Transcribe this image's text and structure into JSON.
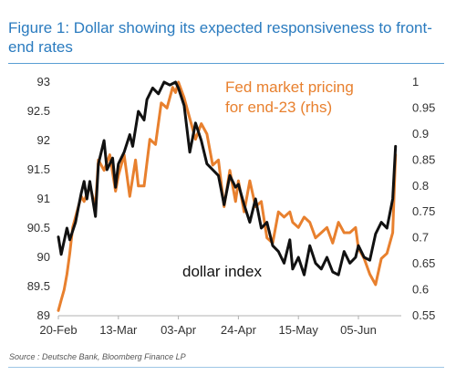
{
  "title": "Figure 1: Dollar showing its expected responsiveness to front-end rates",
  "source": "Source : Deutsche Bank, Bloomberg Finance LP",
  "colors": {
    "dollar": "#111111",
    "fed": "#e8802e",
    "title": "#2a7bbf"
  },
  "chart_data": {
    "type": "line",
    "x_tick_labels": [
      "20-Feb",
      "13-Mar",
      "03-Apr",
      "24-Apr",
      "15-May",
      "05-Jun"
    ],
    "x_tick_dates": [
      "2023-02-20",
      "2023-03-13",
      "2023-04-03",
      "2023-04-24",
      "2023-05-15",
      "2023-06-05"
    ],
    "x_range": [
      "2023-02-20",
      "2023-06-20"
    ],
    "y_left_lim": [
      89,
      93
    ],
    "y_left_ticks": [
      "93",
      "92.5",
      "92",
      "91.5",
      "91",
      "90.5",
      "90",
      "89.5",
      "89"
    ],
    "y_right_lim": [
      0.55,
      1.0
    ],
    "y_right_ticks": [
      "1",
      "0.95",
      "0.9",
      "0.85",
      "0.8",
      "0.75",
      "0.7",
      "0.65",
      "0.6",
      "0.55"
    ],
    "grid": false,
    "annotations": [
      "Fed market pricing",
      "for end-23 (rhs)",
      "dollar index"
    ],
    "series": [
      {
        "axis": "left",
        "x": [
          "2023-02-20",
          "2023-02-21",
          "2023-02-23",
          "2023-02-24",
          "2023-02-26",
          "2023-02-27",
          "2023-02-28",
          "2023-03-01",
          "2023-03-02",
          "2023-03-03",
          "2023-03-05",
          "2023-03-06",
          "2023-03-08",
          "2023-03-09",
          "2023-03-11",
          "2023-03-12",
          "2023-03-13",
          "2023-03-15",
          "2023-03-17",
          "2023-03-18",
          "2023-03-20",
          "2023-03-22",
          "2023-03-23",
          "2023-03-25",
          "2023-03-27",
          "2023-03-29",
          "2023-03-31",
          "2023-04-02",
          "2023-04-03",
          "2023-04-05",
          "2023-04-07",
          "2023-04-09",
          "2023-04-11",
          "2023-04-13",
          "2023-04-15",
          "2023-04-17",
          "2023-04-19",
          "2023-04-21",
          "2023-04-23",
          "2023-04-24",
          "2023-04-26",
          "2023-04-28",
          "2023-04-30",
          "2023-05-02",
          "2023-05-04",
          "2023-05-06",
          "2023-05-08",
          "2023-05-10",
          "2023-05-12",
          "2023-05-13",
          "2023-05-15",
          "2023-05-17",
          "2023-05-19",
          "2023-05-21",
          "2023-05-23",
          "2023-05-25",
          "2023-05-27",
          "2023-05-29",
          "2023-05-31",
          "2023-06-02",
          "2023-06-04",
          "2023-06-05",
          "2023-06-07",
          "2023-06-09",
          "2023-06-11",
          "2023-06-13",
          "2023-06-15",
          "2023-06-17",
          "2023-06-18"
        ],
        "y": [
          90.35,
          90.05,
          90.5,
          90.3,
          90.6,
          90.85,
          91.1,
          91.3,
          91.0,
          91.3,
          90.7,
          91.6,
          92.0,
          91.5,
          91.7,
          91.2,
          91.6,
          91.8,
          92.1,
          91.9,
          92.5,
          92.35,
          92.7,
          92.9,
          92.8,
          93.0,
          92.95,
          93.0,
          92.9,
          92.6,
          91.8,
          92.3,
          92.0,
          91.6,
          91.5,
          91.4,
          90.9,
          91.4,
          91.2,
          91.25,
          90.9,
          90.6,
          91.0,
          90.5,
          90.6,
          90.2,
          90.1,
          89.9,
          90.3,
          89.8,
          90.0,
          89.7,
          90.2,
          89.9,
          89.8,
          90.0,
          89.75,
          89.7,
          90.1,
          89.9,
          90.0,
          90.2,
          90.0,
          89.95,
          90.4,
          90.6,
          90.5,
          91.0,
          91.9
        ]
      },
      {
        "axis": "right",
        "x": [
          "2023-02-20",
          "2023-02-21",
          "2023-02-22",
          "2023-02-23",
          "2023-02-24",
          "2023-02-25",
          "2023-02-27",
          "2023-02-28",
          "2023-03-01",
          "2023-03-03",
          "2023-03-05",
          "2023-03-06",
          "2023-03-08",
          "2023-03-10",
          "2023-03-12",
          "2023-03-13",
          "2023-03-15",
          "2023-03-17",
          "2023-03-19",
          "2023-03-20",
          "2023-03-22",
          "2023-03-24",
          "2023-03-26",
          "2023-03-28",
          "2023-03-30",
          "2023-04-01",
          "2023-04-02",
          "2023-04-03",
          "2023-04-05",
          "2023-04-07",
          "2023-04-09",
          "2023-04-11",
          "2023-04-13",
          "2023-04-15",
          "2023-04-17",
          "2023-04-19",
          "2023-04-21",
          "2023-04-23",
          "2023-04-24",
          "2023-04-26",
          "2023-04-28",
          "2023-04-30",
          "2023-05-02",
          "2023-05-04",
          "2023-05-06",
          "2023-05-08",
          "2023-05-10",
          "2023-05-12",
          "2023-05-13",
          "2023-05-15",
          "2023-05-17",
          "2023-05-19",
          "2023-05-21",
          "2023-05-23",
          "2023-05-25",
          "2023-05-27",
          "2023-05-29",
          "2023-05-31",
          "2023-06-02",
          "2023-06-04",
          "2023-06-05",
          "2023-06-07",
          "2023-06-09",
          "2023-06-11",
          "2023-06-13",
          "2023-06-15",
          "2023-06-17",
          "2023-06-18"
        ],
        "y": [
          0.56,
          0.58,
          0.6,
          0.63,
          0.67,
          0.72,
          0.76,
          0.78,
          0.77,
          0.8,
          0.76,
          0.85,
          0.83,
          0.86,
          0.79,
          0.82,
          0.86,
          0.78,
          0.85,
          0.8,
          0.8,
          0.89,
          0.88,
          0.96,
          0.95,
          0.99,
          0.98,
          1.0,
          0.97,
          0.93,
          0.89,
          0.92,
          0.9,
          0.84,
          0.85,
          0.76,
          0.83,
          0.77,
          0.81,
          0.75,
          0.81,
          0.76,
          0.77,
          0.7,
          0.69,
          0.75,
          0.74,
          0.75,
          0.73,
          0.72,
          0.74,
          0.73,
          0.7,
          0.71,
          0.72,
          0.69,
          0.73,
          0.71,
          0.71,
          0.72,
          0.68,
          0.66,
          0.63,
          0.61,
          0.66,
          0.67,
          0.71,
          0.86
        ]
      }
    ]
  }
}
